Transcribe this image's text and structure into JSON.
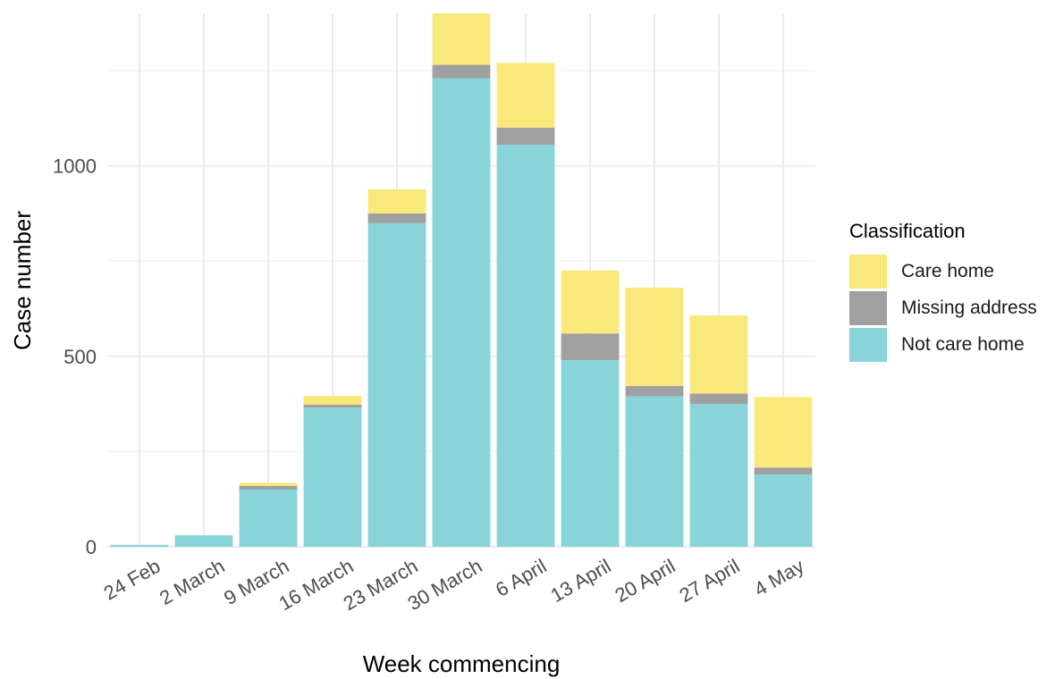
{
  "chart_data": {
    "type": "bar",
    "stacked": true,
    "xlabel": "Week commencing",
    "ylabel": "Case number",
    "ylim": [
      0,
      1400
    ],
    "yticks": [
      0,
      500,
      1000
    ],
    "grid": true,
    "legend_position": "right",
    "legend_title": "Classification",
    "categories": [
      "24 Feb",
      "2 March",
      "9 March",
      "16 March",
      "23 March",
      "30 March",
      "6 April",
      "13 April",
      "20 April",
      "27 April",
      "4 May"
    ],
    "series": [
      {
        "name": "Not care home",
        "color": "#88D4D9",
        "values": [
          5,
          30,
          150,
          365,
          850,
          1230,
          1055,
          490,
          395,
          375,
          190
        ]
      },
      {
        "name": "Missing address",
        "color": "#A0A0A0",
        "values": [
          0,
          0,
          10,
          8,
          25,
          35,
          45,
          70,
          27,
          27,
          18
        ]
      },
      {
        "name": "Care home",
        "color": "#F9E97A",
        "values": [
          0,
          0,
          8,
          23,
          63,
          135,
          170,
          165,
          258,
          205,
          185
        ]
      }
    ]
  }
}
